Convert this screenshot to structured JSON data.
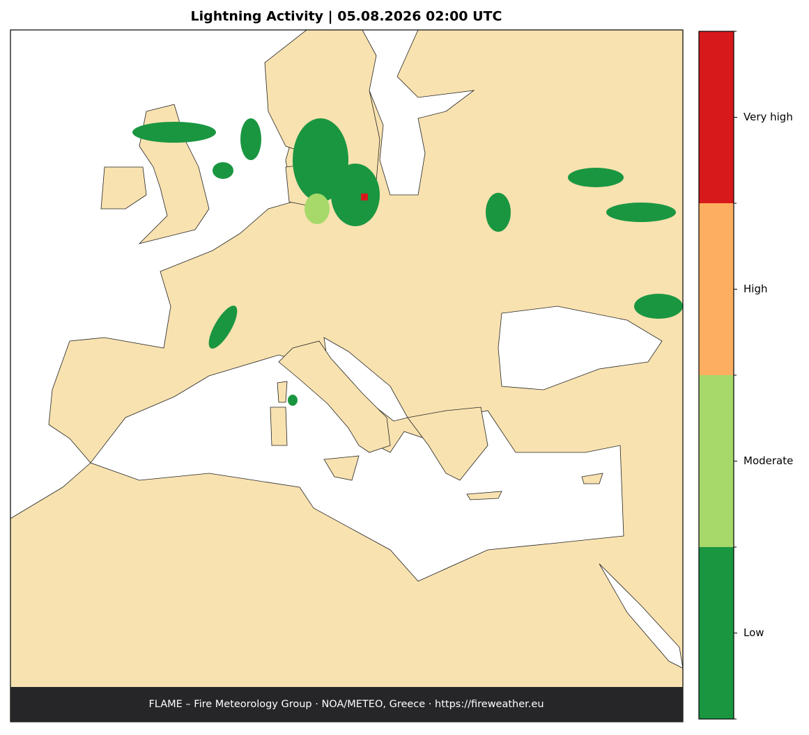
{
  "title": "Lightning Activity  |  05.08.2026 02:00 UTC",
  "footer": "FLAME – Fire Meteorology Group · NOA/METEO, Greece · https://fireweather.eu",
  "legend": {
    "levels": [
      {
        "label": "Low",
        "color": "#1a9641"
      },
      {
        "label": "Moderate",
        "color": "#a6d96a"
      },
      {
        "label": "High",
        "color": "#fdae61"
      },
      {
        "label": "Very high",
        "color": "#d7191c"
      }
    ]
  }
}
